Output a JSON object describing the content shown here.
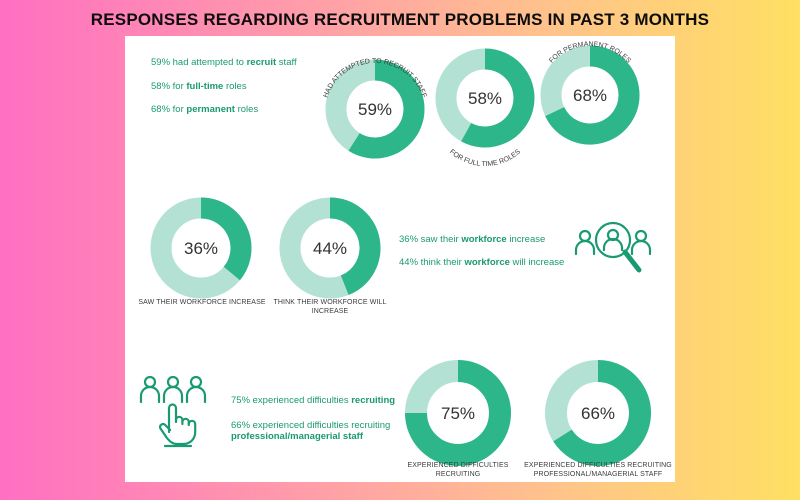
{
  "title": "RESPONSES REGARDING RECRUITMENT PROBLEMS IN PAST 3 MONTHS",
  "colors": {
    "dark": "#2db68a",
    "light": "#b3e2d4",
    "text": "#1a9a72",
    "caption": "#3c3c3c"
  },
  "section1": {
    "lines": [
      {
        "pre": "59% had attempted to ",
        "bold": "recruit",
        "post": " staff"
      },
      {
        "pre": "58% for ",
        "bold": "full-time",
        "post": " roles"
      },
      {
        "pre": "68% for ",
        "bold": "permanent",
        "post": " roles"
      }
    ]
  },
  "section2": {
    "lines": [
      {
        "pre": "36% saw their ",
        "bold": "workforce",
        "post": " increase"
      },
      {
        "pre": "44% think their ",
        "bold": "workforce",
        "post": " will increase"
      }
    ],
    "icon": "workforce-search-icon"
  },
  "section3": {
    "line1": {
      "pre": "75% experienced difficulties ",
      "bold": "recruiting"
    },
    "line2a": "66% experienced difficulties recruiting",
    "line2b": "professional/managerial staff",
    "icon": "hand-pointing-people-icon"
  },
  "chart_data": [
    {
      "type": "pie",
      "donut": true,
      "value": 59,
      "label": "59%",
      "caption": "HAD ATTEMPTED TO RECRUIT STAFF"
    },
    {
      "type": "pie",
      "donut": true,
      "value": 58,
      "label": "58%",
      "caption": "FOR FULL TIME ROLES"
    },
    {
      "type": "pie",
      "donut": true,
      "value": 68,
      "label": "68%",
      "caption": "FOR PERMANENT ROLES"
    },
    {
      "type": "pie",
      "donut": true,
      "value": 36,
      "label": "36%",
      "caption": "SAW THEIR WORKFORCE INCREASE"
    },
    {
      "type": "pie",
      "donut": true,
      "value": 44,
      "label": "44%",
      "caption": [
        "THINK THEIR WORKFORCE WILL",
        "INCREASE"
      ]
    },
    {
      "type": "pie",
      "donut": true,
      "value": 75,
      "label": "75%",
      "caption": [
        "EXPERIENCED DIFFICULTIES",
        "RECRUITING"
      ]
    },
    {
      "type": "pie",
      "donut": true,
      "value": 66,
      "label": "66%",
      "caption": [
        "EXPERIENCED DIFFICULTIES RECRUITING",
        "PROFESSIONAL/MANAGERIAL STAFF"
      ]
    }
  ]
}
